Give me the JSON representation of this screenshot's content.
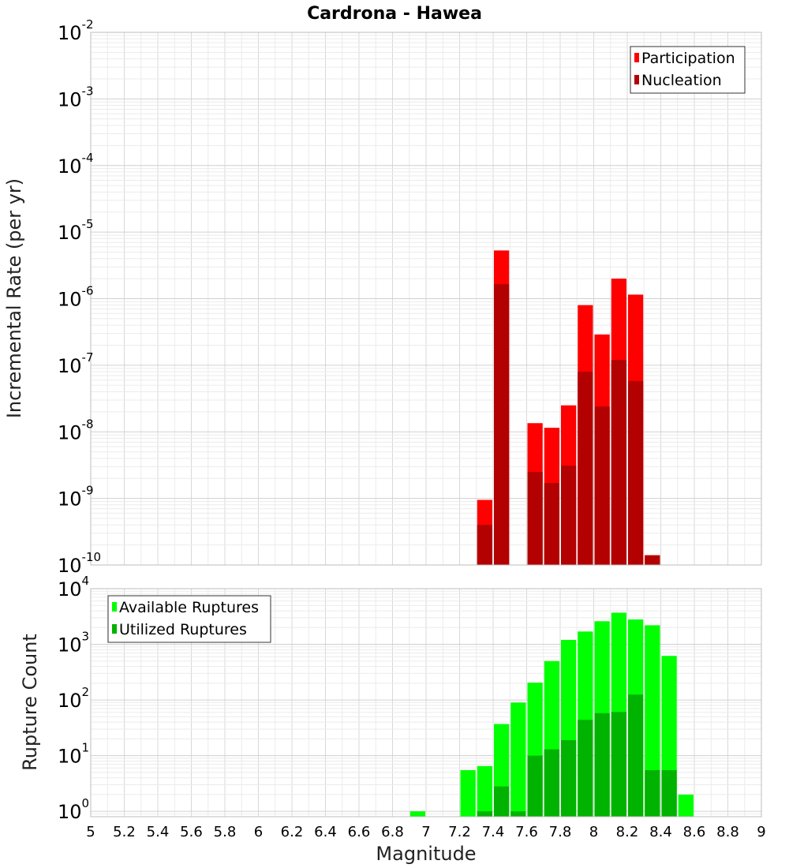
{
  "title": "Cardrona - Hawea",
  "chart_data": [
    {
      "type": "bar",
      "panel": "top",
      "ylabel": "Incremental Rate (per yr)",
      "yscale": "log",
      "ylim": [
        1e-10,
        0.01
      ],
      "xlim": [
        5,
        9
      ],
      "legend_placement": "top-right",
      "bar_width": 0.1,
      "colors": {
        "Participation": "#ff0000",
        "Nucleation": "#b30000"
      },
      "yticks": [
        {
          "base": "10",
          "exp": "-2",
          "value": 0.01
        },
        {
          "base": "10",
          "exp": "-3",
          "value": 0.001
        },
        {
          "base": "10",
          "exp": "-4",
          "value": 0.0001
        },
        {
          "base": "10",
          "exp": "-5",
          "value": 1e-05
        },
        {
          "base": "10",
          "exp": "-6",
          "value": 1e-06
        },
        {
          "base": "10",
          "exp": "-7",
          "value": 1e-07
        },
        {
          "base": "10",
          "exp": "-8",
          "value": 1e-08
        },
        {
          "base": "10",
          "exp": "-9",
          "value": 1e-09
        },
        {
          "base": "10",
          "exp": "-10",
          "value": 1e-10
        }
      ],
      "series": [
        {
          "name": "Participation",
          "x": [
            7.35,
            7.45,
            7.65,
            7.75,
            7.85,
            7.95,
            8.05,
            8.15,
            8.25,
            8.35
          ],
          "values": [
            9.5e-10,
            5.3e-06,
            1.35e-08,
            1.15e-08,
            2.5e-08,
            8e-07,
            2.9e-07,
            2e-06,
            1.15e-06,
            1.4e-10
          ]
        },
        {
          "name": "Nucleation",
          "x": [
            7.35,
            7.45,
            7.65,
            7.75,
            7.85,
            7.95,
            8.05,
            8.15,
            8.25,
            8.35
          ],
          "values": [
            4e-10,
            1.65e-06,
            2.5e-09,
            1.7e-09,
            3.1e-09,
            8e-08,
            2.4e-08,
            1.2e-07,
            5.8e-08,
            1.4e-10
          ]
        }
      ]
    },
    {
      "type": "bar",
      "panel": "bottom",
      "ylabel": "Rupture Count",
      "xlabel": "Magnitude",
      "yscale": "log",
      "ylim": [
        0.8,
        10000
      ],
      "xlim": [
        5,
        9
      ],
      "legend_placement": "top-left",
      "bar_width": 0.1,
      "colors": {
        "Available Ruptures": "#00ff00",
        "Utilized Ruptures": "#00b300"
      },
      "yticks": [
        {
          "base": "10",
          "exp": "0",
          "value": 1
        },
        {
          "base": "10",
          "exp": "1",
          "value": 10
        },
        {
          "base": "10",
          "exp": "2",
          "value": 100
        },
        {
          "base": "10",
          "exp": "3",
          "value": 1000
        },
        {
          "base": "10",
          "exp": "4",
          "value": 10000
        }
      ],
      "xticks": [
        "5",
        "5.2",
        "5.4",
        "5.6",
        "5.8",
        "6",
        "6.2",
        "6.4",
        "6.6",
        "6.8",
        "7",
        "7.2",
        "7.4",
        "7.6",
        "7.8",
        "8",
        "8.2",
        "8.4",
        "8.6",
        "8.8",
        "9"
      ],
      "series": [
        {
          "name": "Available Ruptures",
          "x": [
            6.95,
            7.25,
            7.35,
            7.45,
            7.55,
            7.65,
            7.75,
            7.85,
            7.95,
            8.05,
            8.15,
            8.25,
            8.35,
            8.45,
            8.55
          ],
          "values": [
            1,
            5.5,
            6.5,
            37,
            90,
            205,
            500,
            1200,
            1700,
            2600,
            3700,
            2800,
            2200,
            620,
            2
          ]
        },
        {
          "name": "Utilized Ruptures",
          "x": [
            7.35,
            7.45,
            7.55,
            7.65,
            7.75,
            7.85,
            7.95,
            8.05,
            8.15,
            8.25,
            8.35,
            8.45
          ],
          "values": [
            1,
            2.8,
            1,
            10,
            13,
            19,
            44,
            58,
            61,
            125,
            5.5,
            5.5
          ]
        }
      ]
    }
  ]
}
